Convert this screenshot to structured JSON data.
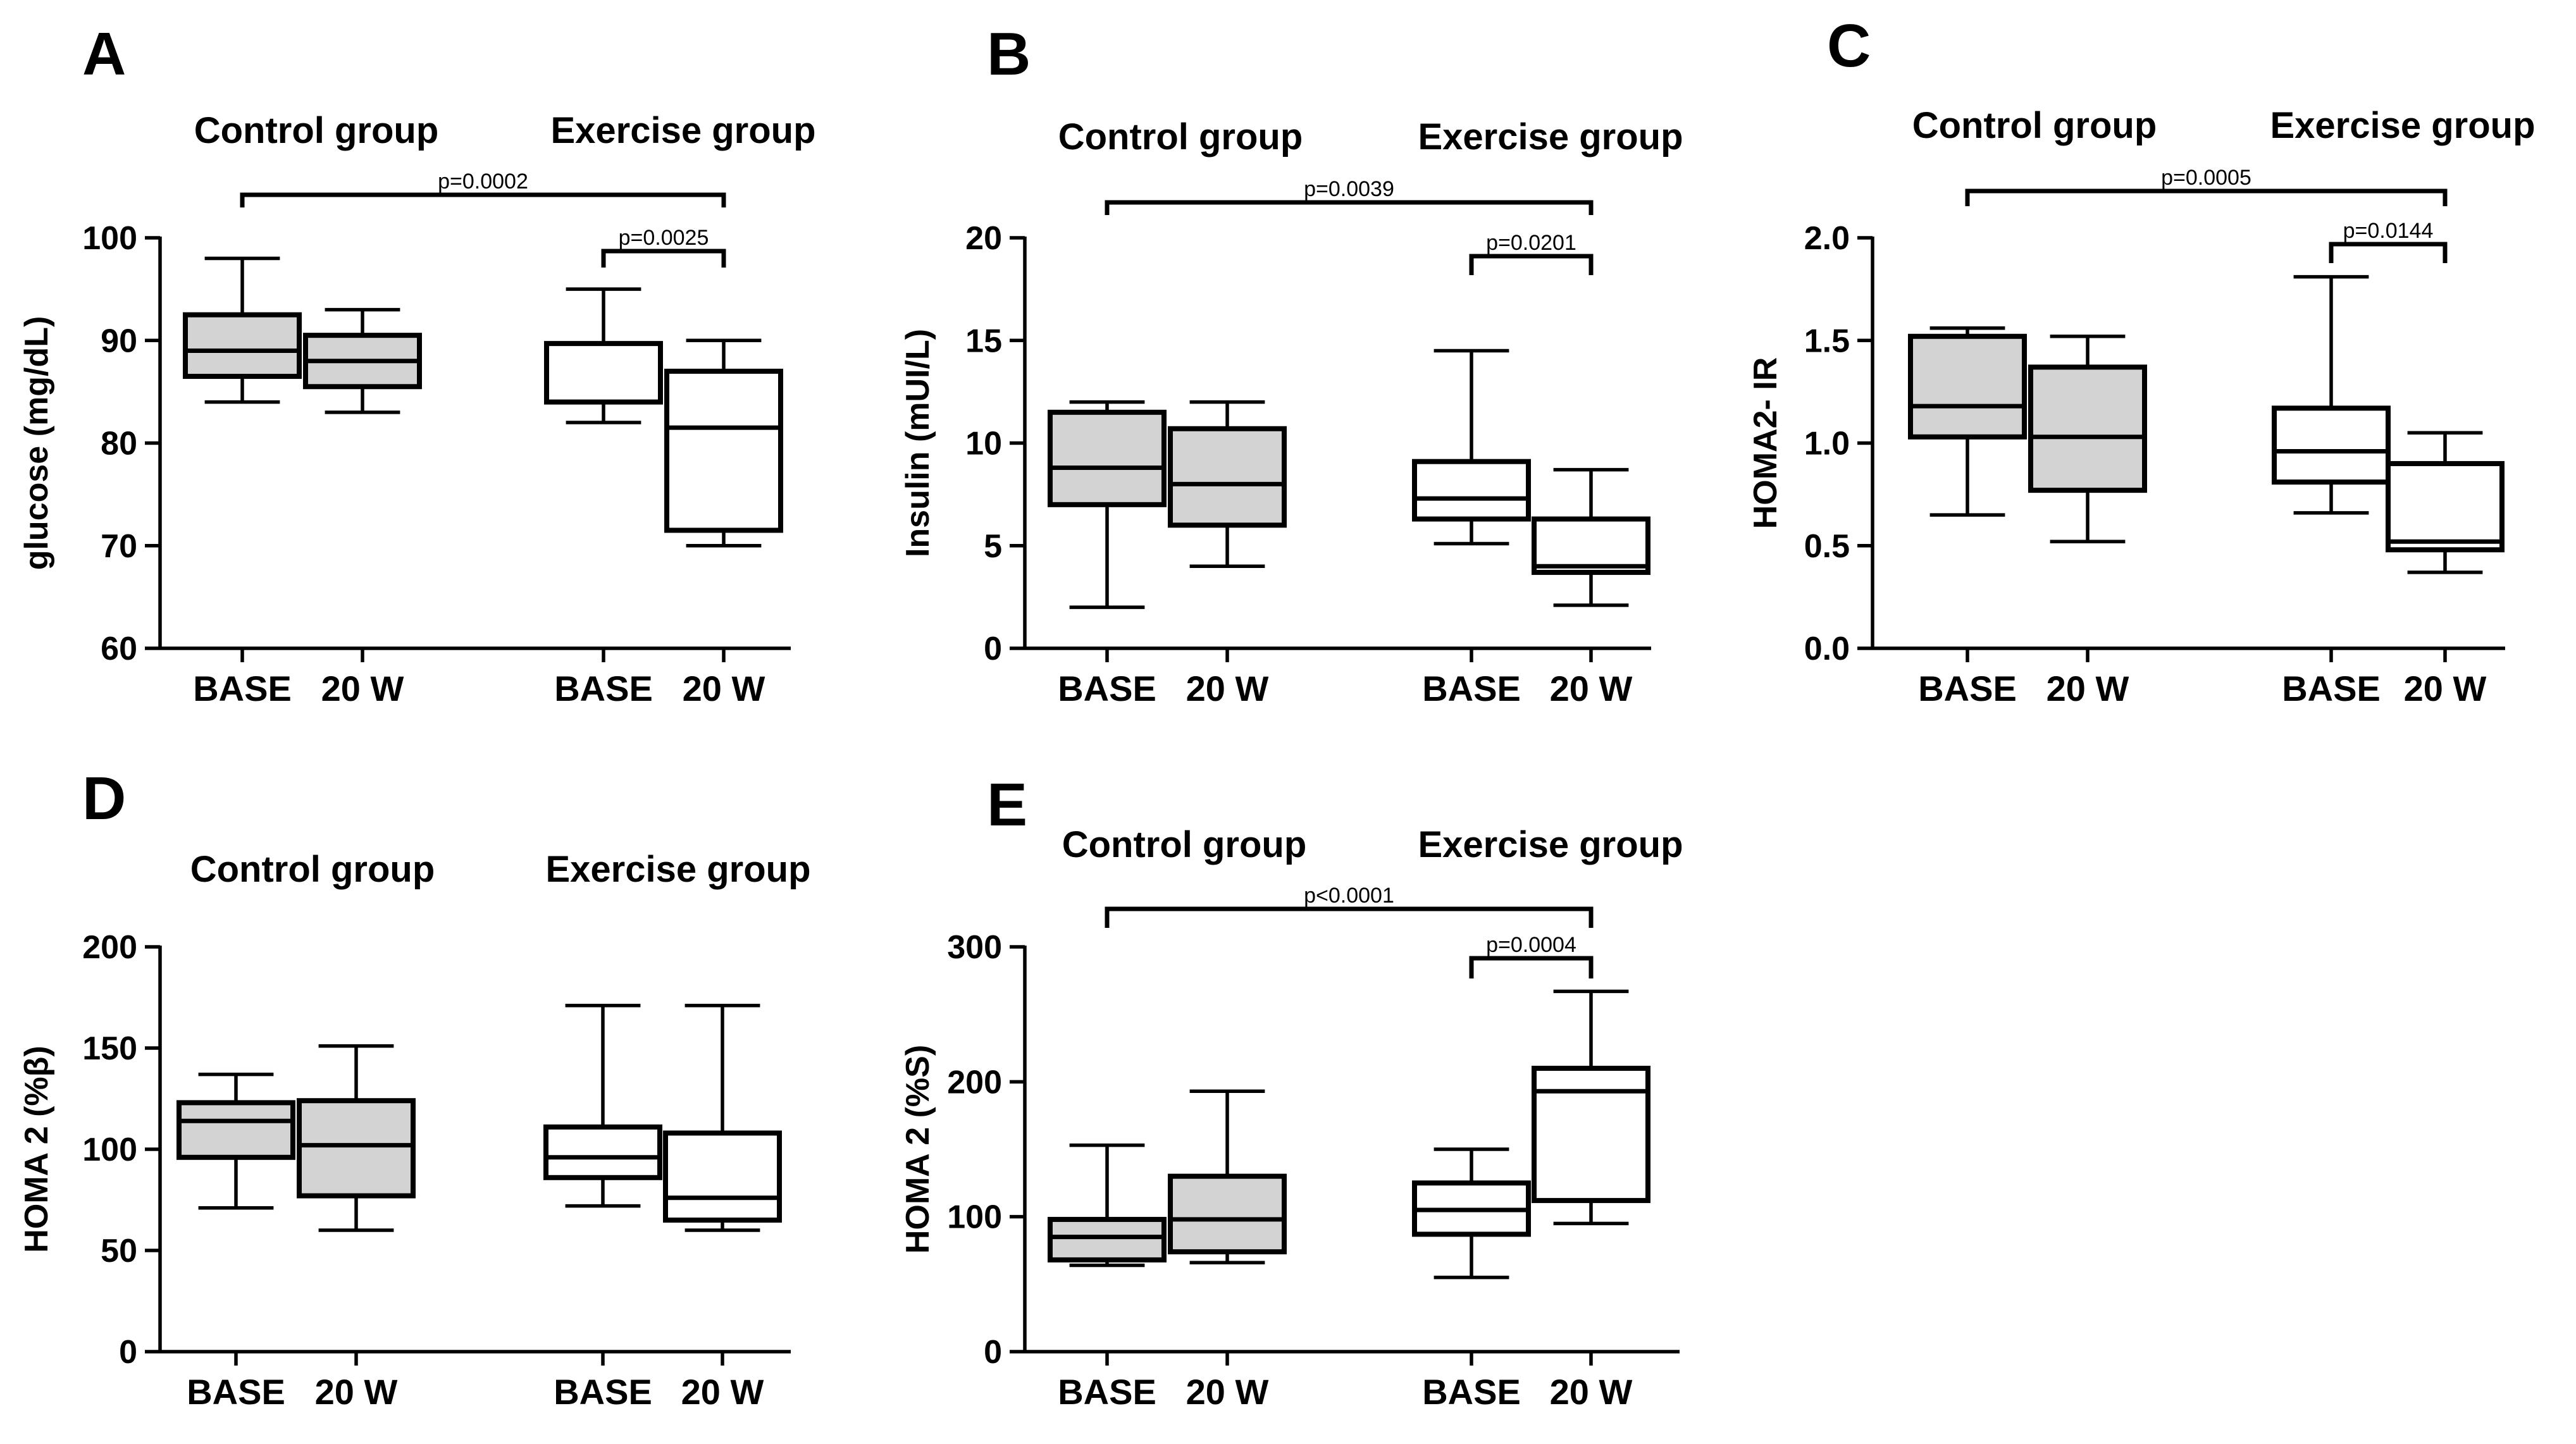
{
  "colors": {
    "control_fill": "#d3d3d3",
    "exercise_fill": "#ffffff",
    "stroke": "#000000"
  },
  "chart_data": [
    {
      "type": "box",
      "panel": "A",
      "ylabel": "glucose (mg/dL)",
      "ylim": [
        60,
        100
      ],
      "yticks": [
        60,
        70,
        80,
        90,
        100
      ],
      "group_labels": [
        "Control group",
        "Exercise group"
      ],
      "categories": [
        "BASE",
        "20 W",
        "BASE",
        "20 W"
      ],
      "boxes": [
        {
          "group": "Control group",
          "category": "BASE",
          "min": 84,
          "q1": 86.5,
          "median": 89,
          "q3": 92.5,
          "max": 98
        },
        {
          "group": "Control group",
          "category": "20 W",
          "min": 83,
          "q1": 85.5,
          "median": 88,
          "q3": 90.5,
          "max": 93
        },
        {
          "group": "Exercise group",
          "category": "BASE",
          "min": 82,
          "q1": 84,
          "median": 84,
          "q3": 89.7,
          "max": 95
        },
        {
          "group": "Exercise group",
          "category": "20 W",
          "min": 70,
          "q1": 71.5,
          "median": 81.5,
          "q3": 87,
          "max": 90
        }
      ],
      "annotations": [
        {
          "text": "p=0.0002",
          "from": 0,
          "to": 3
        },
        {
          "text": "p=0.0025",
          "from": 2,
          "to": 3
        }
      ]
    },
    {
      "type": "box",
      "panel": "B",
      "ylabel": "Insulin (mUI/L)",
      "ylim": [
        0,
        20
      ],
      "yticks": [
        0,
        5,
        10,
        15,
        20
      ],
      "group_labels": [
        "Control group",
        "Exercise group"
      ],
      "categories": [
        "BASE",
        "20 W",
        "BASE",
        "20 W"
      ],
      "boxes": [
        {
          "group": "Control group",
          "category": "BASE",
          "min": 2,
          "q1": 7,
          "median": 8.8,
          "q3": 11.5,
          "max": 12
        },
        {
          "group": "Control group",
          "category": "20 W",
          "min": 4,
          "q1": 6,
          "median": 8,
          "q3": 10.7,
          "max": 12
        },
        {
          "group": "Exercise group",
          "category": "BASE",
          "min": 5.1,
          "q1": 6.3,
          "median": 7.3,
          "q3": 9.1,
          "max": 14.5
        },
        {
          "group": "Exercise group",
          "category": "20 W",
          "min": 2.1,
          "q1": 3.7,
          "median": 4,
          "q3": 6.3,
          "max": 8.7
        }
      ],
      "annotations": [
        {
          "text": "p=0.0039",
          "from": 0,
          "to": 3
        },
        {
          "text": "p=0.0201",
          "from": 2,
          "to": 3
        }
      ]
    },
    {
      "type": "box",
      "panel": "C",
      "ylabel": "HOMA2- IR",
      "ylim": [
        0,
        2
      ],
      "yticks": [
        0,
        0.5,
        1,
        1.5,
        2
      ],
      "ytick_labels": [
        "0.0",
        "0.5",
        "1.0",
        "1.5",
        "2.0"
      ],
      "group_labels": [
        "Control group",
        "Exercise group"
      ],
      "categories": [
        "BASE",
        "20 W",
        "BASE",
        "20 W"
      ],
      "boxes": [
        {
          "group": "Control group",
          "category": "BASE",
          "min": 0.65,
          "q1": 1.03,
          "median": 1.18,
          "q3": 1.52,
          "max": 1.56
        },
        {
          "group": "Control group",
          "category": "20 W",
          "min": 0.52,
          "q1": 0.77,
          "median": 1.03,
          "q3": 1.37,
          "max": 1.52
        },
        {
          "group": "Exercise group",
          "category": "BASE",
          "min": 0.66,
          "q1": 0.81,
          "median": 0.96,
          "q3": 1.17,
          "max": 1.81
        },
        {
          "group": "Exercise group",
          "category": "20 W",
          "min": 0.37,
          "q1": 0.48,
          "median": 0.52,
          "q3": 0.9,
          "max": 1.05
        }
      ],
      "annotations": [
        {
          "text": "p=0.0005",
          "from": 0,
          "to": 3
        },
        {
          "text": "p=0.0144",
          "from": 2,
          "to": 3
        }
      ]
    },
    {
      "type": "box",
      "panel": "D",
      "ylabel": "HOMA 2 (%β)",
      "ylim": [
        0,
        200
      ],
      "yticks": [
        0,
        50,
        100,
        150,
        200
      ],
      "group_labels": [
        "Control group",
        "Exercise group"
      ],
      "categories": [
        "BASE",
        "20 W",
        "BASE",
        "20 W"
      ],
      "boxes": [
        {
          "group": "Control group",
          "category": "BASE",
          "min": 71,
          "q1": 96,
          "median": 114,
          "q3": 123,
          "max": 137
        },
        {
          "group": "Control group",
          "category": "20 W",
          "min": 60,
          "q1": 77,
          "median": 102,
          "q3": 124,
          "max": 151
        },
        {
          "group": "Exercise group",
          "category": "BASE",
          "min": 72,
          "q1": 86,
          "median": 96,
          "q3": 111,
          "max": 171
        },
        {
          "group": "Exercise group",
          "category": "20 W",
          "min": 60,
          "q1": 65,
          "median": 76,
          "q3": 108,
          "max": 171
        }
      ],
      "annotations": []
    },
    {
      "type": "box",
      "panel": "E",
      "ylabel": "HOMA 2 (%S)",
      "ylim": [
        0,
        300
      ],
      "yticks": [
        0,
        100,
        200,
        300
      ],
      "group_labels": [
        "Control group",
        "Exercise group"
      ],
      "categories": [
        "BASE",
        "20 W",
        "BASE",
        "20 W"
      ],
      "boxes": [
        {
          "group": "Control group",
          "category": "BASE",
          "min": 64,
          "q1": 68,
          "median": 85,
          "q3": 98,
          "max": 153
        },
        {
          "group": "Control group",
          "category": "20 W",
          "min": 66,
          "q1": 74,
          "median": 98,
          "q3": 130,
          "max": 193
        },
        {
          "group": "Exercise group",
          "category": "BASE",
          "min": 55,
          "q1": 87,
          "median": 105,
          "q3": 125,
          "max": 150
        },
        {
          "group": "Exercise group",
          "category": "20 W",
          "min": 95,
          "q1": 112,
          "median": 193,
          "q3": 210,
          "max": 267
        }
      ],
      "annotations": [
        {
          "text": "p<0.0001",
          "from": 0,
          "to": 3
        },
        {
          "text": "p=0.0004",
          "from": 2,
          "to": 3
        }
      ]
    }
  ]
}
